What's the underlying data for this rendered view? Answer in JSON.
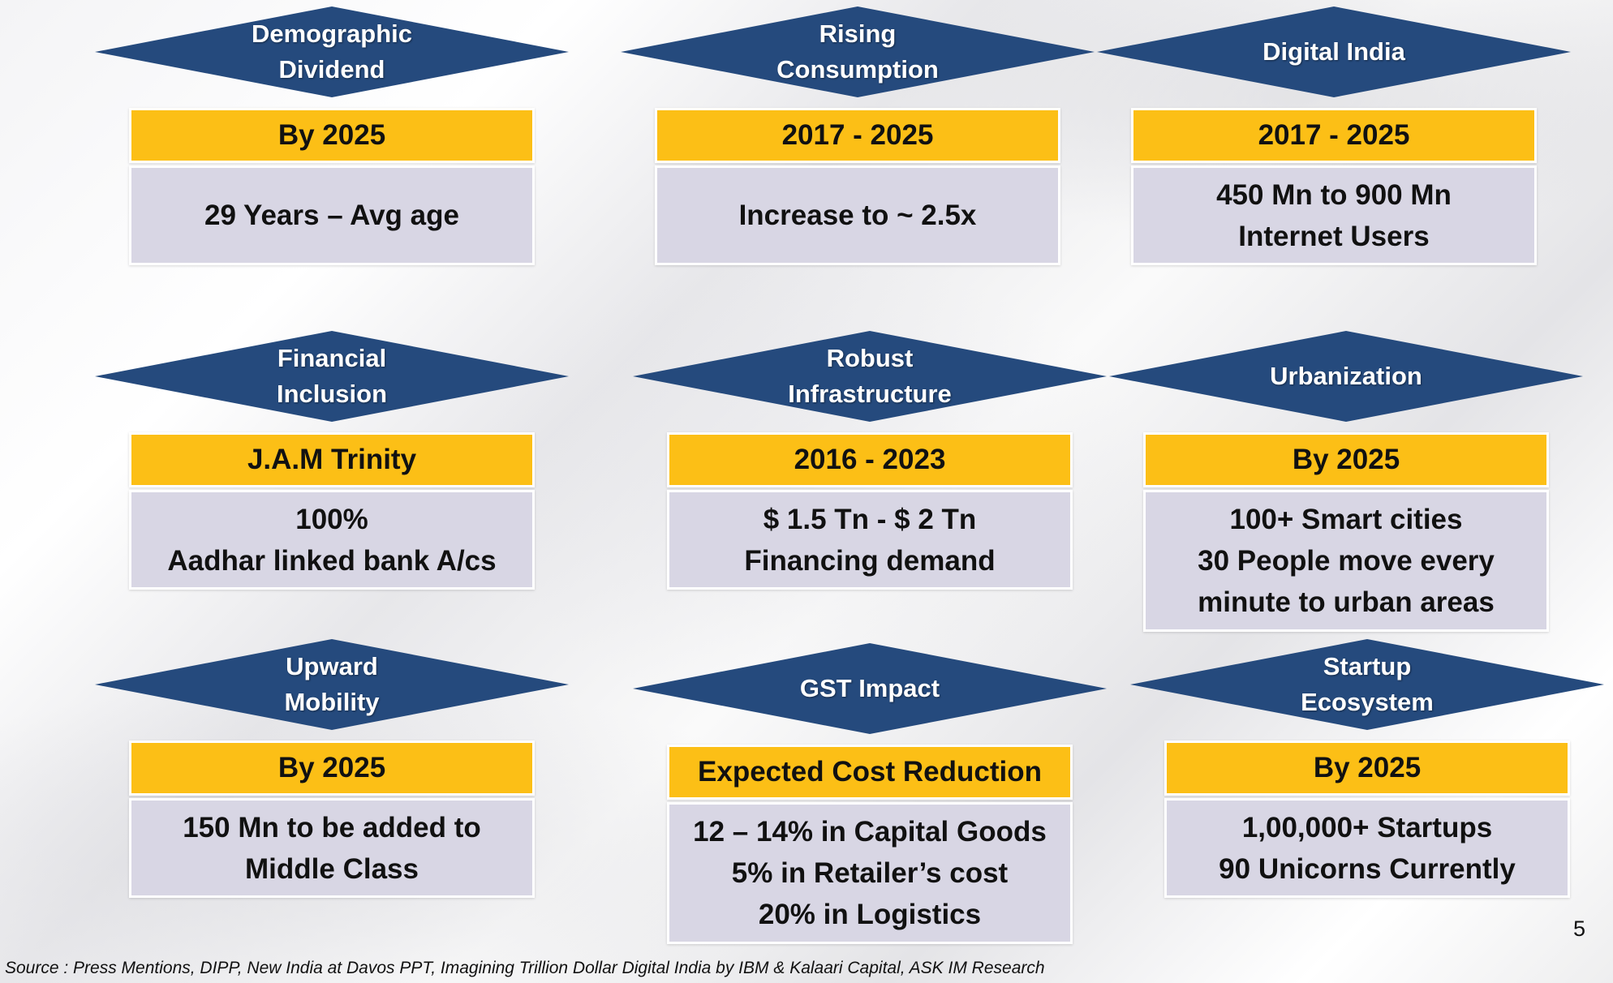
{
  "cards": [
    {
      "title": "Demographic\nDividend",
      "period": "By 2025",
      "detail": "29 Years – Avg age"
    },
    {
      "title": "Rising\nConsumption",
      "period": "2017 - 2025",
      "detail": "Increase to ~ 2.5x"
    },
    {
      "title": "Digital India",
      "period": "2017 -  2025",
      "detail": "450 Mn  to 900 Mn\nInternet Users"
    },
    {
      "title": "Financial\nInclusion",
      "period": "J.A.M Trinity",
      "detail": "100%\nAadhar linked bank A/cs"
    },
    {
      "title": "Robust\nInfrastructure",
      "period": "2016 - 2023",
      "detail": "$ 1.5 Tn  - $ 2 Tn\nFinancing demand"
    },
    {
      "title": "Urbanization",
      "period": "By 2025",
      "detail": "100+ Smart cities\n30 People move every\nminute to urban areas"
    },
    {
      "title": "Upward\nMobility",
      "period": "By 2025",
      "detail": "150 Mn to be added to\nMiddle Class"
    },
    {
      "title": "GST Impact",
      "period": "Expected Cost Reduction",
      "detail": "12 – 14% in Capital Goods\n5% in Retailer’s cost\n20% in Logistics"
    },
    {
      "title": "Startup\nEcosystem",
      "period": "By 2025",
      "detail": "1,00,000+ Startups\n90 Unicorns Currently"
    }
  ],
  "footer": {
    "source": "Source : Press Mentions, DIPP, New India at Davos PPT, Imagining Trillion Dollar Digital India by IBM & Kalaari Capital, ASK IM Research",
    "page_number": "5"
  },
  "colors": {
    "diamond": "#254a7d",
    "period_bar": "#fcbf16",
    "detail_box": "#d8d6e4"
  }
}
